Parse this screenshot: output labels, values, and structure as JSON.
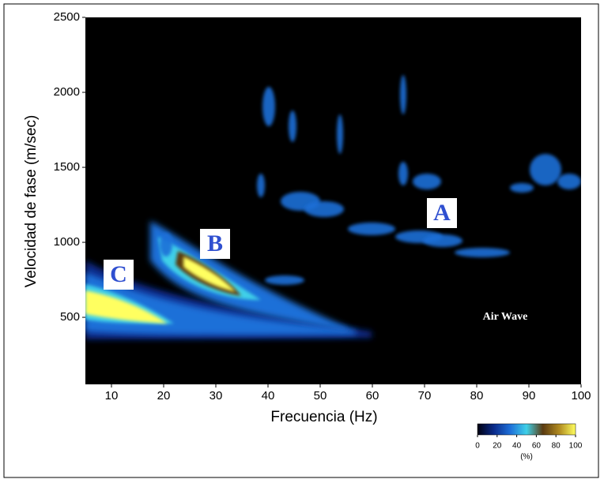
{
  "chart_data": {
    "type": "heatmap",
    "xlabel": "Frecuencia (Hz)",
    "ylabel": "Velocidad de fase (m/sec)",
    "xlim": [
      5,
      100
    ],
    "ylim": [
      53,
      2500
    ],
    "xticks": [
      10,
      20,
      30,
      40,
      50,
      60,
      70,
      80,
      90,
      100
    ],
    "yticks": [
      500,
      1000,
      1500,
      2000,
      2500
    ],
    "annotations": [
      "A",
      "B",
      "C",
      "Air Wave"
    ],
    "colorbar": {
      "label": "(%)",
      "lim": [
        0,
        100
      ],
      "ticks": [
        0,
        20,
        40,
        60,
        80,
        100
      ],
      "colors": [
        "#000010",
        "#0a2a8a",
        "#1e6fd8",
        "#3fd0e8",
        "#5a3a10",
        "#b08a20",
        "#ffff60"
      ]
    }
  }
}
